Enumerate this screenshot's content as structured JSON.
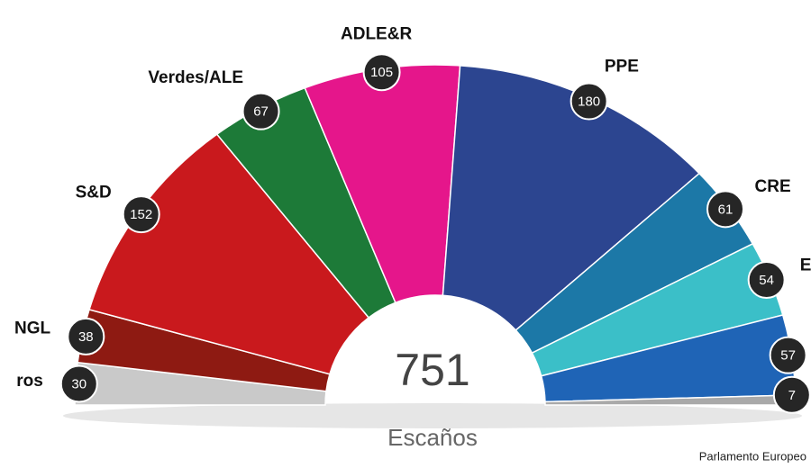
{
  "chart_data": {
    "type": "parliament",
    "categories": [
      "ros",
      "NGL",
      "S&D",
      "Verdes/ALE",
      "ADLE&R",
      "PPE",
      "CRE",
      "E",
      null,
      null
    ],
    "values": [
      30,
      38,
      152,
      67,
      105,
      180,
      61,
      54,
      57,
      7
    ],
    "colors": [
      "#c9c9c9",
      "#8e1a12",
      "#c9191d",
      "#1d7a38",
      "#e5168b",
      "#2c4590",
      "#1c78a7",
      "#3bbfc8",
      "#1f64b6",
      "#a9a9a9"
    ],
    "total": 751,
    "total_label": "Escaños",
    "source": "Parlamento Europeo"
  }
}
